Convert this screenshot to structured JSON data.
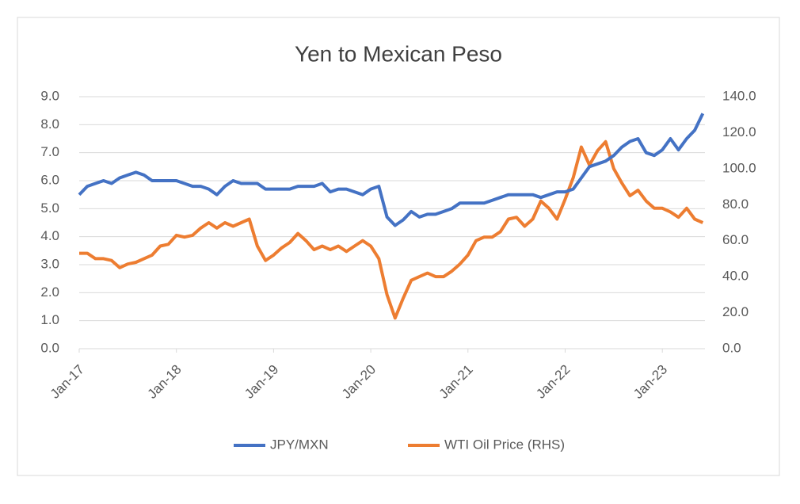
{
  "chart_data": {
    "type": "line",
    "title": "Yen to Mexican Peso",
    "x": [
      "2017-01",
      "2017-02",
      "2017-03",
      "2017-04",
      "2017-05",
      "2017-06",
      "2017-07",
      "2017-08",
      "2017-09",
      "2017-10",
      "2017-11",
      "2017-12",
      "2018-01",
      "2018-02",
      "2018-03",
      "2018-04",
      "2018-05",
      "2018-06",
      "2018-07",
      "2018-08",
      "2018-09",
      "2018-10",
      "2018-11",
      "2018-12",
      "2019-01",
      "2019-02",
      "2019-03",
      "2019-04",
      "2019-05",
      "2019-06",
      "2019-07",
      "2019-08",
      "2019-09",
      "2019-10",
      "2019-11",
      "2019-12",
      "2020-01",
      "2020-02",
      "2020-03",
      "2020-04",
      "2020-05",
      "2020-06",
      "2020-07",
      "2020-08",
      "2020-09",
      "2020-10",
      "2020-11",
      "2020-12",
      "2021-01",
      "2021-02",
      "2021-03",
      "2021-04",
      "2021-05",
      "2021-06",
      "2021-07",
      "2021-08",
      "2021-09",
      "2021-10",
      "2021-11",
      "2021-12",
      "2022-01",
      "2022-02",
      "2022-03",
      "2022-04",
      "2022-05",
      "2022-06",
      "2022-07",
      "2022-08",
      "2022-09",
      "2022-10",
      "2022-11",
      "2022-12",
      "2023-01",
      "2023-02",
      "2023-03",
      "2023-04",
      "2023-05",
      "2023-06"
    ],
    "series": [
      {
        "name": "JPY/MXN",
        "color": "#4472c4",
        "axis": "y",
        "values": [
          5.5,
          5.8,
          5.9,
          6.0,
          5.9,
          6.1,
          6.2,
          6.3,
          6.2,
          6.0,
          6.0,
          6.0,
          6.0,
          5.9,
          5.8,
          5.8,
          5.7,
          5.5,
          5.8,
          6.0,
          5.9,
          5.9,
          5.9,
          5.7,
          5.7,
          5.7,
          5.7,
          5.8,
          5.8,
          5.8,
          5.9,
          5.6,
          5.7,
          5.7,
          5.6,
          5.5,
          5.7,
          5.8,
          4.7,
          4.4,
          4.6,
          4.9,
          4.7,
          4.8,
          4.8,
          4.9,
          5.0,
          5.2,
          5.2,
          5.2,
          5.2,
          5.3,
          5.4,
          5.5,
          5.5,
          5.5,
          5.5,
          5.4,
          5.5,
          5.6,
          5.6,
          5.7,
          6.1,
          6.5,
          6.6,
          6.7,
          6.9,
          7.2,
          7.4,
          7.5,
          7.0,
          6.9,
          7.1,
          7.5,
          7.1,
          7.5,
          7.8,
          8.4
        ]
      },
      {
        "name": "WTI Oil Price (RHS)",
        "color": "#ed7d31",
        "axis": "y2",
        "values": [
          53,
          53,
          50,
          50,
          49,
          45,
          47,
          48,
          50,
          52,
          57,
          58,
          63,
          62,
          63,
          67,
          70,
          67,
          70,
          68,
          70,
          72,
          57,
          49,
          52,
          56,
          59,
          64,
          60,
          55,
          57,
          55,
          57,
          54,
          57,
          60,
          57,
          50,
          30,
          17,
          28,
          38,
          40,
          42,
          40,
          40,
          43,
          47,
          52,
          60,
          62,
          62,
          65,
          72,
          73,
          68,
          72,
          82,
          78,
          72,
          83,
          95,
          112,
          102,
          110,
          115,
          100,
          92,
          85,
          88,
          82,
          78,
          78,
          76,
          73,
          78,
          72,
          70
        ]
      }
    ],
    "xticks": [
      {
        "value": "2017-01",
        "label": "Jan-17"
      },
      {
        "value": "2018-01",
        "label": "Jan-18"
      },
      {
        "value": "2019-01",
        "label": "Jan-19"
      },
      {
        "value": "2020-01",
        "label": "Jan-20"
      },
      {
        "value": "2021-01",
        "label": "Jan-21"
      },
      {
        "value": "2022-01",
        "label": "Jan-22"
      },
      {
        "value": "2023-01",
        "label": "Jan-23"
      }
    ],
    "ylim": [
      0,
      9
    ],
    "yticks": [
      {
        "value": 0,
        "label": "0.0"
      },
      {
        "value": 1,
        "label": "1.0"
      },
      {
        "value": 2,
        "label": "2.0"
      },
      {
        "value": 3,
        "label": "3.0"
      },
      {
        "value": 4,
        "label": "4.0"
      },
      {
        "value": 5,
        "label": "5.0"
      },
      {
        "value": 6,
        "label": "6.0"
      },
      {
        "value": 7,
        "label": "7.0"
      },
      {
        "value": 8,
        "label": "8.0"
      },
      {
        "value": 9,
        "label": "9.0"
      }
    ],
    "y2lim": [
      0,
      140
    ],
    "y2ticks": [
      {
        "value": 0,
        "label": "0.0"
      },
      {
        "value": 20,
        "label": "20.0"
      },
      {
        "value": 40,
        "label": "40.0"
      },
      {
        "value": 60,
        "label": "60.0"
      },
      {
        "value": 80,
        "label": "80.0"
      },
      {
        "value": 100,
        "label": "100.0"
      },
      {
        "value": 120,
        "label": "120.0"
      },
      {
        "value": 140,
        "label": "140.0"
      }
    ],
    "legend": "bottom"
  }
}
